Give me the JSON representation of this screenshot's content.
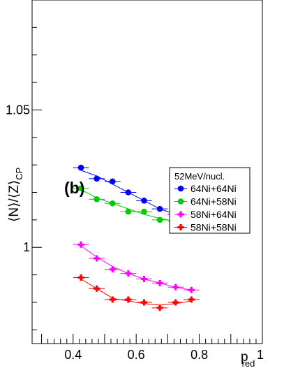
{
  "chart_data": {
    "type": "line",
    "panel_label": "(b)",
    "xlabel": "p",
    "xlabel_subscript": "red",
    "ylabel": "⟨N⟩/⟨Z⟩",
    "ylabel_subscript": "CP",
    "xlim": [
      0.27,
      1.0
    ],
    "ylim": [
      0.965,
      1.09
    ],
    "x_ticks": [
      {
        "value": 0.4,
        "label": "0.4"
      },
      {
        "value": 0.6,
        "label": "0.6"
      },
      {
        "value": 0.8,
        "label": "0.8"
      },
      {
        "value": 1.0,
        "label": "1"
      }
    ],
    "y_ticks": [
      {
        "value": 1.0,
        "label": "1"
      },
      {
        "value": 1.05,
        "label": "1.05"
      }
    ],
    "legend": {
      "title": "52MeV/nucl.",
      "placement": "top-right"
    },
    "x_bin_halfwidth": 0.025,
    "x": [
      0.425,
      0.475,
      0.525,
      0.575,
      0.625,
      0.675,
      0.725,
      0.775
    ],
    "series": [
      {
        "name": "64Ni+64Ni",
        "color": "#0000ff",
        "marker": "circle",
        "values": [
          1.029,
          1.025,
          1.024,
          1.02,
          1.017,
          1.014,
          1.012,
          1.011
        ],
        "fit": [
          1.028,
          1.026,
          1.023,
          1.02,
          1.017,
          1.014,
          1.012,
          1.011
        ]
      },
      {
        "name": "64Ni+58Ni",
        "color": "#00cc00",
        "marker": "circle",
        "values": [
          1.0215,
          1.0175,
          1.016,
          1.013,
          1.013,
          1.01,
          1.0095,
          1.009
        ],
        "fit": [
          1.021,
          1.018,
          1.016,
          1.014,
          1.012,
          1.0105,
          1.0095,
          1.009
        ]
      },
      {
        "name": "58Ni+64Ni",
        "color": "#ff00ff",
        "marker": "plus",
        "values": [
          1.001,
          0.996,
          0.992,
          0.9905,
          0.9885,
          0.987,
          0.9855,
          0.9845
        ],
        "fit": [
          1.0005,
          0.9965,
          0.993,
          0.9905,
          0.9885,
          0.987,
          0.9855,
          0.9845
        ]
      },
      {
        "name": "58Ni+58Ni",
        "color": "#ff0000",
        "marker": "plus",
        "values": [
          0.989,
          0.985,
          0.981,
          0.981,
          0.98,
          0.978,
          0.98,
          0.981
        ],
        "fit": [
          0.9885,
          0.985,
          0.9815,
          0.9805,
          0.9795,
          0.979,
          0.9795,
          0.9805
        ]
      }
    ]
  }
}
